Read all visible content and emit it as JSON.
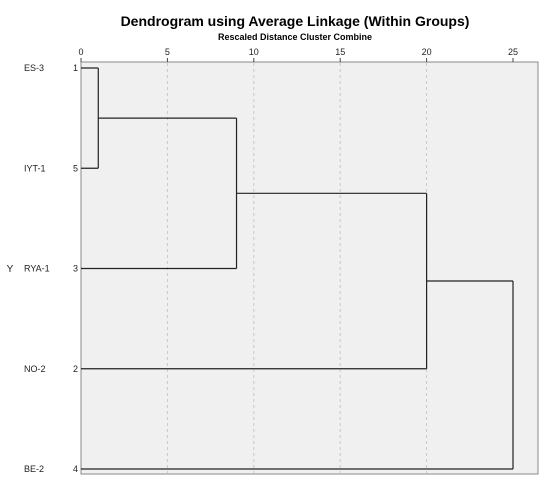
{
  "chart_data": {
    "type": "dendrogram",
    "title": "Dendrogram using Average Linkage (Within Groups)",
    "xlabel": "Rescaled Distance Cluster Combine",
    "ylabel": "Y",
    "xlim": [
      0,
      25
    ],
    "x_ticks": [
      "0",
      "5",
      "10",
      "15",
      "20",
      "25"
    ],
    "x_tick_values": [
      0,
      5,
      10,
      15,
      20,
      25
    ],
    "grid": true,
    "leaves": [
      {
        "label": "ES-3",
        "number": "1"
      },
      {
        "label": "IYT-1",
        "number": "5"
      },
      {
        "label": "RYA-1",
        "number": "3"
      },
      {
        "label": "NO-2",
        "number": "2"
      },
      {
        "label": "BE-2",
        "number": "4"
      }
    ],
    "merges": [
      {
        "left": 0,
        "right": 1,
        "distance": 1
      },
      {
        "left": "m0",
        "right": 2,
        "distance": 9
      },
      {
        "left": "m1",
        "right": 3,
        "distance": 20
      },
      {
        "left": "m2",
        "right": 4,
        "distance": 25
      }
    ]
  }
}
